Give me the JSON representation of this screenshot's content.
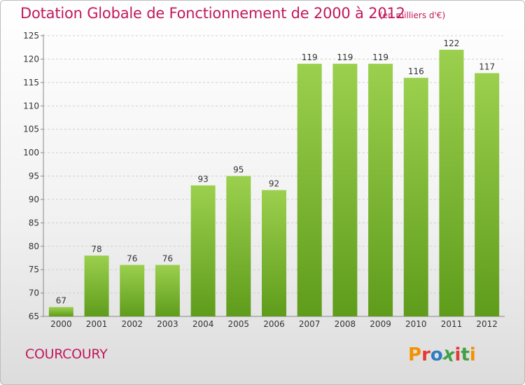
{
  "title": "Dotation Globale de Fonctionnement de 2000 à 2012",
  "unit_note": "(en milliers d'€)",
  "commune": "COURCOURY",
  "logo_text": "Proxiti",
  "colors": {
    "title": "#c2185b",
    "bar_light": "#9bd04e",
    "bar_dark": "#5f9c1b",
    "logo": [
      "#f39200",
      "#e53935",
      "#2e7dc1",
      "#43a047",
      "#e53935",
      "#43a047",
      "#f39200"
    ]
  },
  "chart_data": {
    "type": "bar",
    "title": "Dotation Globale de Fonctionnement de 2000 à 2012",
    "xlabel": "",
    "ylabel": "",
    "categories": [
      "2000",
      "2001",
      "2002",
      "2003",
      "2004",
      "2005",
      "2006",
      "2007",
      "2008",
      "2009",
      "2010",
      "2011",
      "2012"
    ],
    "values": [
      67,
      78,
      76,
      76,
      93,
      95,
      92,
      119,
      119,
      119,
      116,
      122,
      117
    ],
    "ylim": [
      65,
      125
    ],
    "yticks": [
      65,
      70,
      75,
      80,
      85,
      90,
      95,
      100,
      105,
      110,
      115,
      120,
      125
    ],
    "grid": true
  }
}
